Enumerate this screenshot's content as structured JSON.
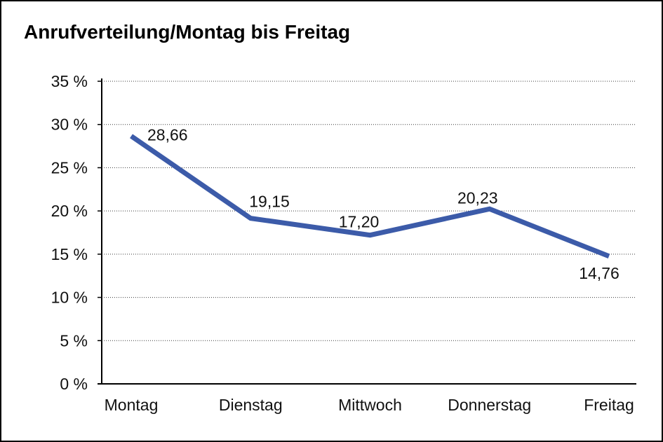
{
  "title": "Anrufverteilung/Montag bis Freitag",
  "chart_data": {
    "type": "line",
    "title": "Anrufverteilung/Montag bis Freitag",
    "categories": [
      "Montag",
      "Dienstag",
      "Mittwoch",
      "Donnerstag",
      "Freitag"
    ],
    "values": [
      28.66,
      19.15,
      17.2,
      20.23,
      14.76
    ],
    "point_labels": [
      "28,66",
      "19,15",
      "17,20",
      "20,23",
      "14,76"
    ],
    "unit": "%",
    "decimal_separator": ",",
    "xlabel": "",
    "ylabel": "",
    "ylim": [
      0,
      35
    ],
    "y_tick_values": [
      35,
      30,
      25,
      20,
      15,
      10,
      5,
      0
    ],
    "y_tick_labels": [
      "35 %",
      "30 %",
      "25 %",
      "20 %",
      "15 %",
      "10 %",
      "5 %",
      "0 %"
    ],
    "grid": "horizontal-dotted",
    "legend": "none",
    "line_color": "#3C5BA9",
    "text_color": "#111111",
    "axis_color": "#000000"
  }
}
